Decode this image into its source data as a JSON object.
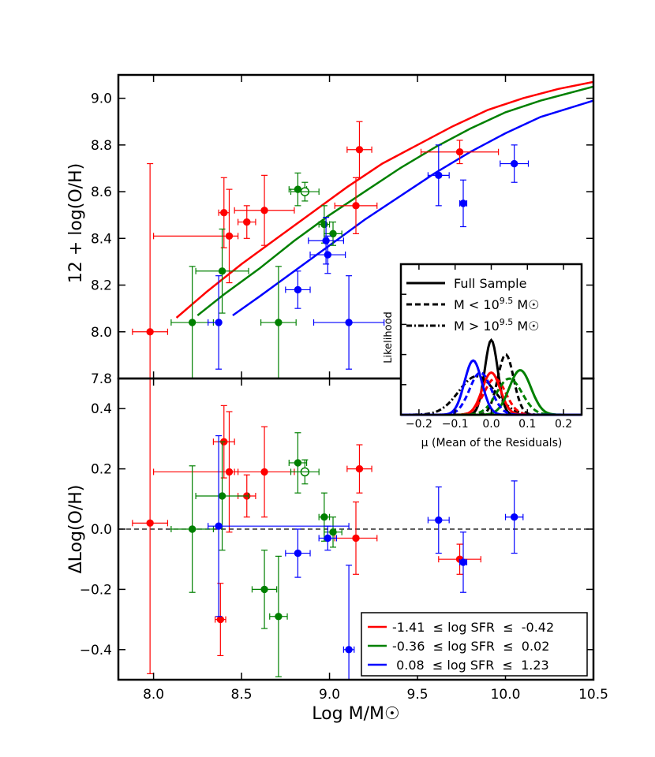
{
  "chart_data": [
    {
      "id": "top",
      "type": "scatter",
      "ylabel": "12 + log(O/H)",
      "xlim": [
        7.8,
        10.5
      ],
      "ylim": [
        7.8,
        9.1
      ],
      "yticks": [
        7.8,
        8.0,
        8.2,
        8.4,
        8.6,
        8.8,
        9.0
      ],
      "ytick_labels": [
        "7.8",
        "8.0",
        "8.2",
        "8.4",
        "8.6",
        "8.8",
        "9.0"
      ],
      "curves": [
        {
          "name": "red",
          "color": "#ff0000",
          "x": [
            8.13,
            8.3,
            8.5,
            8.7,
            8.9,
            9.1,
            9.3,
            9.5,
            9.7,
            9.9,
            10.1,
            10.3,
            10.5
          ],
          "y": [
            8.06,
            8.17,
            8.29,
            8.4,
            8.51,
            8.62,
            8.72,
            8.8,
            8.88,
            8.95,
            9.0,
            9.04,
            9.07
          ]
        },
        {
          "name": "green",
          "color": "#008000",
          "x": [
            8.25,
            8.4,
            8.6,
            8.8,
            9.0,
            9.2,
            9.4,
            9.6,
            9.8,
            10.0,
            10.2,
            10.5
          ],
          "y": [
            8.07,
            8.16,
            8.27,
            8.39,
            8.5,
            8.6,
            8.7,
            8.79,
            8.87,
            8.94,
            8.99,
            9.05
          ]
        },
        {
          "name": "blue",
          "color": "#0000ff",
          "x": [
            8.45,
            8.6,
            8.8,
            9.0,
            9.2,
            9.4,
            9.6,
            9.8,
            10.0,
            10.2,
            10.5
          ],
          "y": [
            8.07,
            8.15,
            8.26,
            8.37,
            8.48,
            8.58,
            8.68,
            8.77,
            8.85,
            8.92,
            8.99
          ]
        }
      ],
      "points": [
        {
          "group": "red",
          "x": 7.98,
          "y": 8.0,
          "xerr": 0.1,
          "yerr": [
            0.3,
            0.72
          ],
          "open": false
        },
        {
          "group": "red",
          "x": 8.4,
          "y": 8.51,
          "xerr": 0.03,
          "yerr": 0.15,
          "open": false
        },
        {
          "group": "red",
          "x": 8.43,
          "y": 8.41,
          "xerr": [
            0.43,
            0.05
          ],
          "yerr": 0.2,
          "open": false
        },
        {
          "group": "red",
          "x": 8.53,
          "y": 8.47,
          "xerr": 0.05,
          "yerr": 0.07,
          "open": false
        },
        {
          "group": "red",
          "x": 8.63,
          "y": 8.52,
          "xerr": 0.17,
          "yerr": 0.15,
          "open": false
        },
        {
          "group": "red",
          "x": 9.15,
          "y": 8.54,
          "xerr": 0.12,
          "yerr": 0.12,
          "open": false
        },
        {
          "group": "red",
          "x": 9.17,
          "y": 8.78,
          "xerr": 0.07,
          "yerr": 0.12,
          "open": false
        },
        {
          "group": "red",
          "x": 9.74,
          "y": 8.77,
          "xerr": 0.22,
          "yerr": 0.05,
          "open": false
        },
        {
          "group": "green",
          "x": 8.22,
          "y": 8.04,
          "xerr": 0.12,
          "yerr": 0.24,
          "open": false
        },
        {
          "group": "green",
          "x": 8.39,
          "y": 8.26,
          "xerr": 0.15,
          "yerr": 0.18,
          "open": false
        },
        {
          "group": "green",
          "x": 8.71,
          "y": 8.04,
          "xerr": 0.1,
          "yerr": 0.24,
          "open": false
        },
        {
          "group": "green",
          "x": 8.82,
          "y": 8.61,
          "xerr": 0.05,
          "yerr": 0.07,
          "open": false
        },
        {
          "group": "green",
          "x": 8.86,
          "y": 8.6,
          "xerr": 0.08,
          "yerr": 0.04,
          "open": true
        },
        {
          "group": "green",
          "x": 8.97,
          "y": 8.46,
          "xerr": 0.03,
          "yerr": 0.08,
          "open": false
        },
        {
          "group": "green",
          "x": 9.02,
          "y": 8.42,
          "xerr": 0.05,
          "yerr": 0.05,
          "open": false
        },
        {
          "group": "blue",
          "x": 8.37,
          "y": 8.04,
          "xerr": [
            0.06,
            0.01
          ],
          "yerr": 0.2,
          "open": false
        },
        {
          "group": "blue",
          "x": 8.82,
          "y": 8.18,
          "xerr": 0.07,
          "yerr": 0.08,
          "open": false
        },
        {
          "group": "blue",
          "x": 8.98,
          "y": 8.39,
          "xerr": 0.1,
          "yerr": 0.1,
          "open": false
        },
        {
          "group": "blue",
          "x": 8.99,
          "y": 8.33,
          "xerr": 0.1,
          "yerr": 0.08,
          "open": false
        },
        {
          "group": "blue",
          "x": 9.11,
          "y": 8.04,
          "xerr": 0.2,
          "yerr": 0.2,
          "open": false
        },
        {
          "group": "blue",
          "x": 9.62,
          "y": 8.67,
          "xerr": 0.06,
          "yerr": 0.13,
          "open": false
        },
        {
          "group": "blue",
          "x": 9.76,
          "y": 8.55,
          "xerr": 0.02,
          "yerr": 0.1,
          "open": false
        },
        {
          "group": "blue",
          "x": 10.05,
          "y": 8.72,
          "xerr": 0.08,
          "yerr": 0.08,
          "open": false
        }
      ]
    },
    {
      "id": "bottom",
      "type": "scatter",
      "xlabel": "Log M/M☉",
      "ylabel": "ΔLog(O/H)",
      "xlim": [
        7.8,
        10.5
      ],
      "ylim": [
        -0.5,
        0.5
      ],
      "xticks": [
        8.0,
        8.5,
        9.0,
        9.5,
        10.0,
        10.5
      ],
      "xtick_labels": [
        "8.0",
        "8.5",
        "9.0",
        "9.5",
        "10.0",
        "10.5"
      ],
      "yticks": [
        -0.4,
        -0.2,
        0.0,
        0.2,
        0.4
      ],
      "ytick_labels": [
        "−0.4",
        "−0.2",
        "0.0",
        "0.2",
        "0.4"
      ],
      "reference_line": {
        "y": 0.0,
        "style": "dashed"
      },
      "points": [
        {
          "group": "red",
          "x": 7.98,
          "y": 0.02,
          "xerr": 0.1,
          "yerr": [
            0.5,
            0.5
          ],
          "open": false
        },
        {
          "group": "red",
          "x": 8.38,
          "y": -0.3,
          "xerr": 0.03,
          "yerr": 0.12,
          "open": false
        },
        {
          "group": "red",
          "x": 8.4,
          "y": 0.29,
          "xerr": 0.06,
          "yerr": 0.12,
          "open": false
        },
        {
          "group": "red",
          "x": 8.43,
          "y": 0.19,
          "xerr": [
            0.43,
            0.05
          ],
          "yerr": 0.2,
          "open": false
        },
        {
          "group": "red",
          "x": 8.53,
          "y": 0.11,
          "xerr": 0.05,
          "yerr": 0.07,
          "open": false
        },
        {
          "group": "red",
          "x": 8.63,
          "y": 0.19,
          "xerr": 0.17,
          "yerr": 0.15,
          "open": false
        },
        {
          "group": "red",
          "x": 9.15,
          "y": -0.03,
          "xerr": 0.12,
          "yerr": 0.12,
          "open": false
        },
        {
          "group": "red",
          "x": 9.17,
          "y": 0.2,
          "xerr": 0.07,
          "yerr": 0.08,
          "open": false
        },
        {
          "group": "red",
          "x": 9.74,
          "y": -0.1,
          "xerr": 0.12,
          "yerr": 0.05,
          "open": false
        },
        {
          "group": "green",
          "x": 8.22,
          "y": 0.0,
          "xerr": 0.12,
          "yerr": 0.21,
          "open": false
        },
        {
          "group": "green",
          "x": 8.39,
          "y": 0.11,
          "xerr": 0.15,
          "yerr": 0.18,
          "open": false
        },
        {
          "group": "green",
          "x": 8.63,
          "y": -0.2,
          "xerr": 0.07,
          "yerr": 0.13,
          "open": false
        },
        {
          "group": "green",
          "x": 8.71,
          "y": -0.29,
          "xerr": 0.05,
          "yerr": 0.2,
          "open": false
        },
        {
          "group": "green",
          "x": 8.82,
          "y": 0.22,
          "xerr": 0.05,
          "yerr": 0.1,
          "open": false
        },
        {
          "group": "green",
          "x": 8.86,
          "y": 0.19,
          "xerr": 0.08,
          "yerr": 0.04,
          "open": true
        },
        {
          "group": "green",
          "x": 8.97,
          "y": 0.04,
          "xerr": 0.03,
          "yerr": 0.08,
          "open": false
        },
        {
          "group": "green",
          "x": 9.02,
          "y": -0.01,
          "xerr": 0.05,
          "yerr": 0.05,
          "open": false
        },
        {
          "group": "blue",
          "x": 8.37,
          "y": 0.01,
          "xerr": [
            0.06,
            0.74
          ],
          "yerr": 0.3,
          "open": false
        },
        {
          "group": "blue",
          "x": 8.82,
          "y": -0.08,
          "xerr": 0.07,
          "yerr": 0.08,
          "open": false
        },
        {
          "group": "blue",
          "x": 8.99,
          "y": -0.03,
          "xerr": 0.05,
          "yerr": 0.04,
          "open": false
        },
        {
          "group": "blue",
          "x": 9.11,
          "y": -0.4,
          "xerr": 0.03,
          "yerr": 0.28,
          "open": false
        },
        {
          "group": "blue",
          "x": 9.62,
          "y": 0.03,
          "xerr": 0.06,
          "yerr": 0.11,
          "open": false
        },
        {
          "group": "blue",
          "x": 9.76,
          "y": -0.11,
          "xerr": 0.02,
          "yerr": 0.1,
          "open": false
        },
        {
          "group": "blue",
          "x": 10.05,
          "y": 0.04,
          "xerr": 0.05,
          "yerr": 0.12,
          "open": false
        }
      ],
      "legend": {
        "placement": "bottom-right",
        "entries": [
          {
            "group": "red",
            "color": "#ff0000",
            "label": "-1.41  ≤ log SFR  ≤  -0.42"
          },
          {
            "group": "green",
            "color": "#008000",
            "label": "-0.36  ≤ log SFR  ≤  0.02"
          },
          {
            "group": "blue",
            "color": "#0000ff",
            "label": " 0.08  ≤ log SFR  ≤  1.23"
          }
        ]
      }
    },
    {
      "id": "inset",
      "type": "line",
      "xlabel": "μ (Mean of the Residuals)",
      "ylabel": "Likelihood",
      "xlim": [
        -0.25,
        0.25
      ],
      "ylim": [
        0,
        1.25
      ],
      "xticks": [
        -0.2,
        -0.1,
        0.0,
        0.1,
        0.2
      ],
      "xtick_labels": [
        "−0.2",
        "−0.1",
        "0.0",
        "0.1",
        "0.2"
      ],
      "legend": {
        "placement": "top",
        "entries": [
          {
            "style": "solid",
            "label": "Full Sample"
          },
          {
            "style": "dashed",
            "label_prefix": "M < 10",
            "label_exp": "9.5",
            "label_suffix": " M☉"
          },
          {
            "style": "dashdot",
            "label_prefix": "M > 10",
            "label_exp": "9.5",
            "label_suffix": " M☉"
          }
        ]
      },
      "series": [
        {
          "name": "black full",
          "color": "#000000",
          "style": "solid",
          "mean": 0.0,
          "sigma": 0.018,
          "amp": 0.62
        },
        {
          "name": "black low-mass",
          "color": "#000000",
          "style": "dashed",
          "mean": 0.04,
          "sigma": 0.022,
          "amp": 0.5
        },
        {
          "name": "black high-mass",
          "color": "#000000",
          "style": "dashdot",
          "mean": -0.04,
          "sigma": 0.05,
          "amp": 0.32
        },
        {
          "name": "red full",
          "color": "#ff0000",
          "style": "solid",
          "mean": 0.0,
          "sigma": 0.025,
          "amp": 0.35
        },
        {
          "name": "red low-mass",
          "color": "#ff0000",
          "style": "dashed",
          "mean": 0.01,
          "sigma": 0.03,
          "amp": 0.3
        },
        {
          "name": "green full",
          "color": "#008000",
          "style": "solid",
          "mean": 0.08,
          "sigma": 0.03,
          "amp": 0.37
        },
        {
          "name": "green low-mass",
          "color": "#008000",
          "style": "dashed",
          "mean": 0.05,
          "sigma": 0.035,
          "amp": 0.3
        },
        {
          "name": "blue full",
          "color": "#0000ff",
          "style": "solid",
          "mean": -0.05,
          "sigma": 0.024,
          "amp": 0.45
        },
        {
          "name": "blue low-mass",
          "color": "#0000ff",
          "style": "dashed",
          "mean": -0.03,
          "sigma": 0.03,
          "amp": 0.35
        }
      ]
    }
  ]
}
